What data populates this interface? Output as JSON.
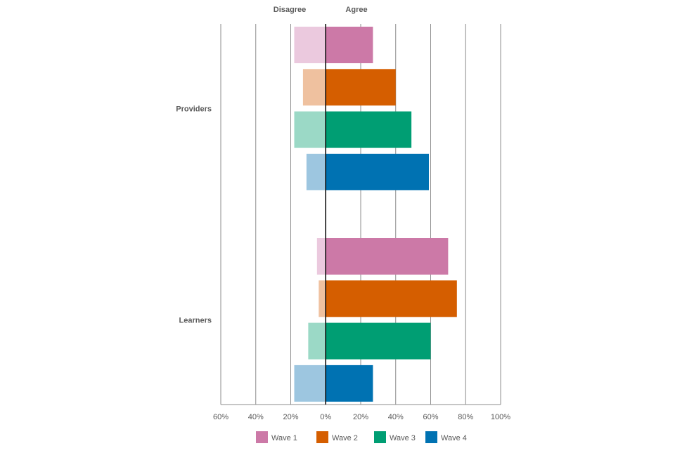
{
  "chart_data": {
    "type": "bar",
    "orientation": "horizontal-diverging",
    "side_labels": {
      "negative": "Disagree",
      "positive": "Agree"
    },
    "categories": [
      "Providers",
      "Learners"
    ],
    "series": [
      {
        "name": "Wave 1",
        "agree": [
          27,
          70
        ],
        "disagree": [
          18,
          5
        ],
        "color": "#CC79A7",
        "light_color": "#EBC9DE"
      },
      {
        "name": "Wave 2",
        "agree": [
          40,
          75
        ],
        "disagree": [
          13,
          4
        ],
        "color": "#D55E00",
        "light_color": "#EFC19F"
      },
      {
        "name": "Wave 3",
        "agree": [
          49,
          60
        ],
        "disagree": [
          18,
          10
        ],
        "color": "#009E73",
        "light_color": "#9BD9C6"
      },
      {
        "name": "Wave 4",
        "agree": [
          59,
          27
        ],
        "disagree": [
          11,
          18
        ],
        "color": "#0072B2",
        "light_color": "#9DC6E0"
      }
    ],
    "xlim": [
      -60,
      100
    ],
    "x_ticks": [
      -60,
      -40,
      -20,
      0,
      20,
      40,
      60,
      80,
      100
    ],
    "x_tick_labels": [
      "60%",
      "40%",
      "20%",
      "0%",
      "20%",
      "40%",
      "60%",
      "80%",
      "100%"
    ],
    "grid": true,
    "legend_position": "bottom"
  }
}
